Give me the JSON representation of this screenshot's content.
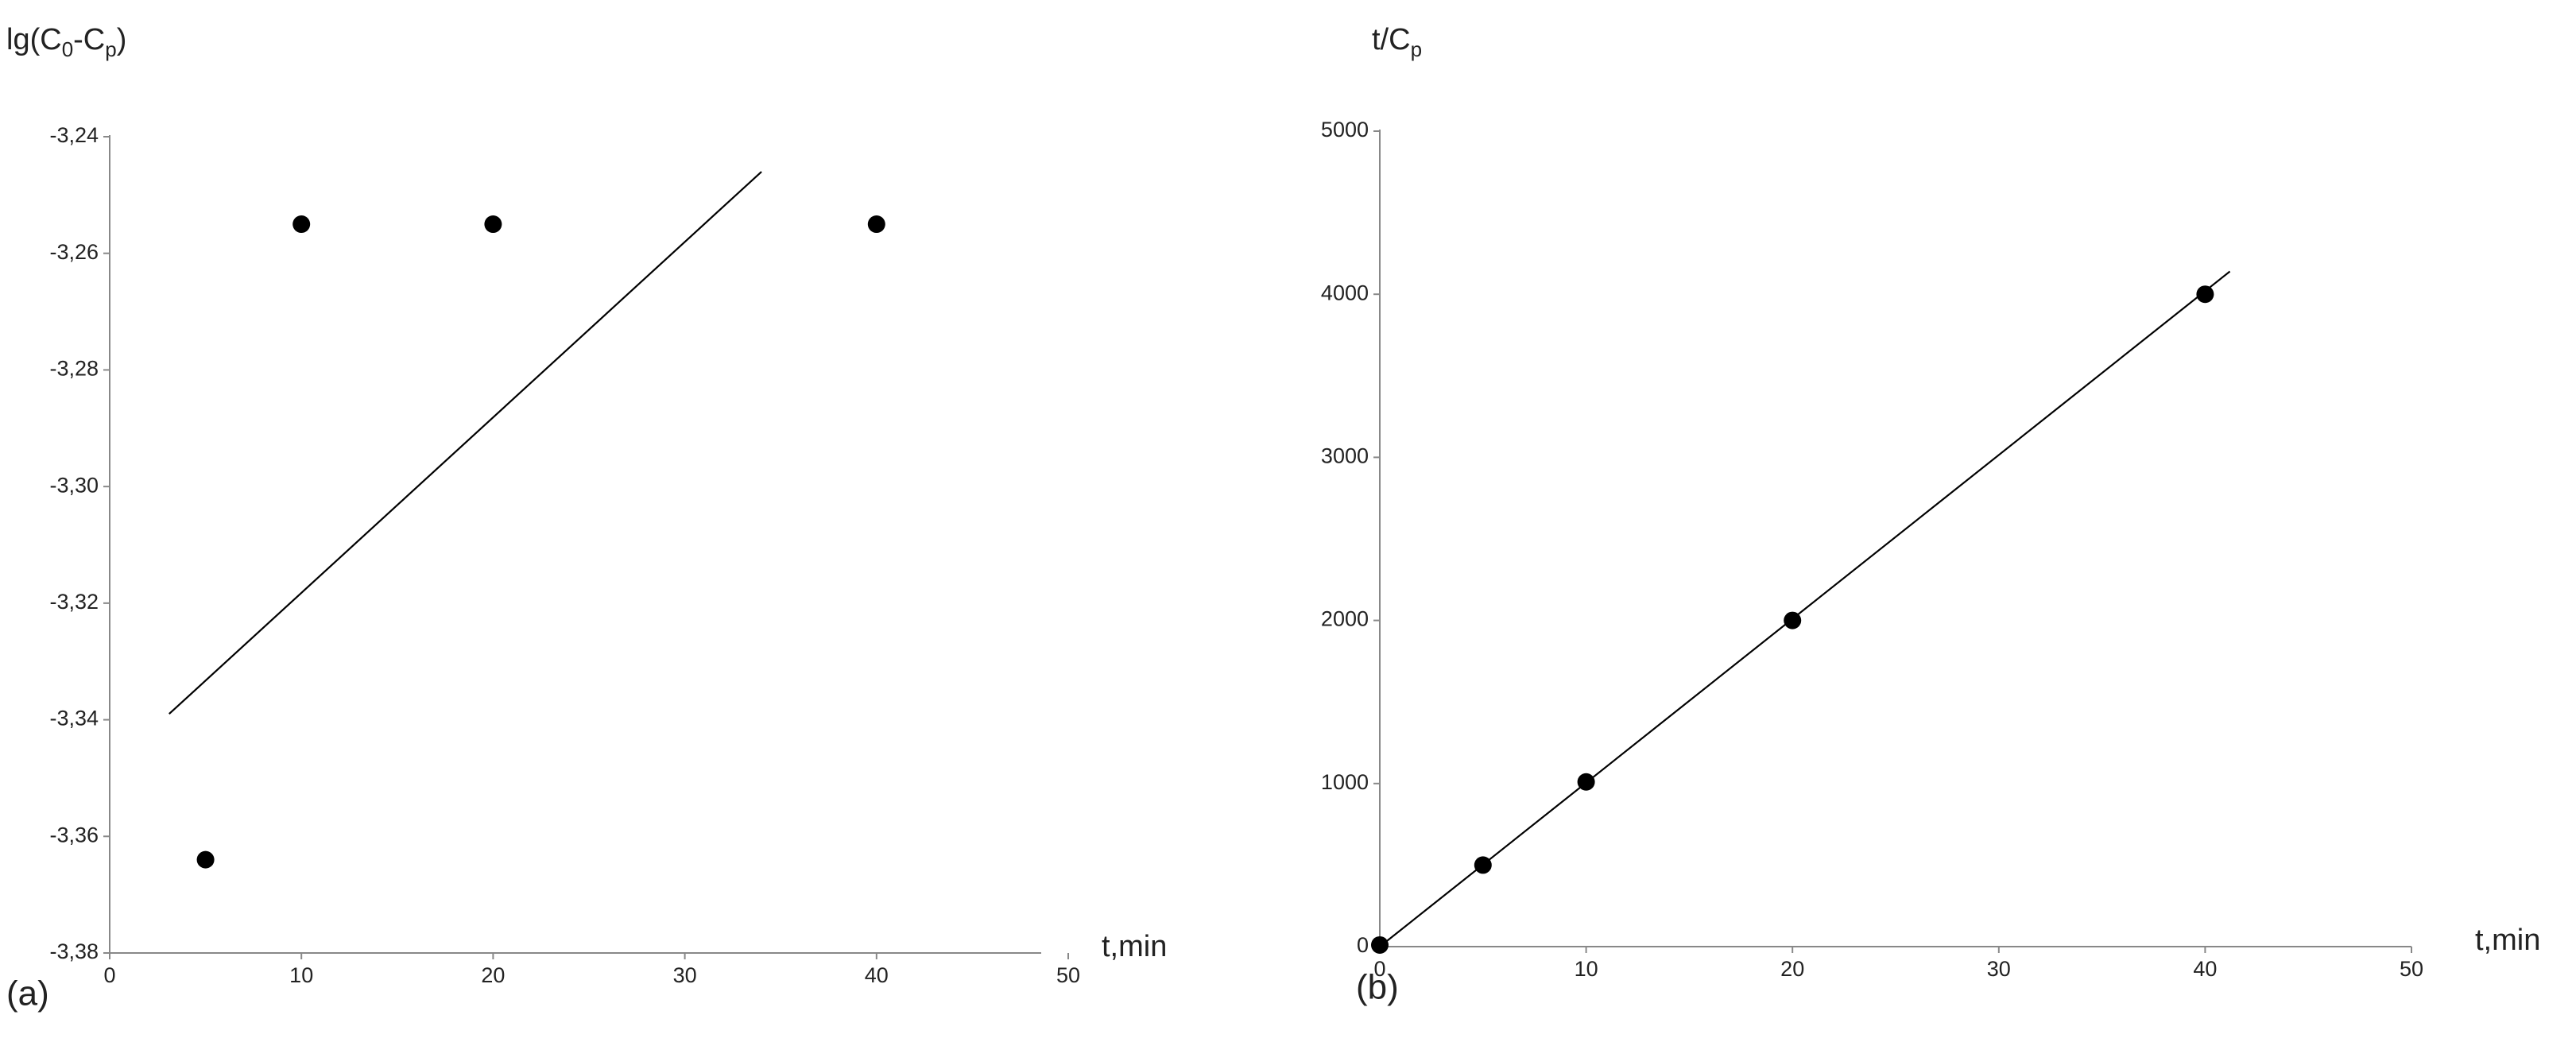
{
  "chart_data": [
    {
      "type": "scatter",
      "panel": "(a)",
      "ylabel": [
        "lg(C",
        "0",
        "-C",
        "p",
        ")"
      ],
      "xlabel": "t,min",
      "xlim": [
        0,
        50
      ],
      "xticks": [
        0,
        10,
        20,
        30,
        40,
        50
      ],
      "ylim": [
        -3.38,
        -3.24
      ],
      "yticks": [
        {
          "value": -3.38,
          "label": "-3,38"
        },
        {
          "value": -3.36,
          "label": "-3,36"
        },
        {
          "value": -3.34,
          "label": "-3,34"
        },
        {
          "value": -3.32,
          "label": "-3,32"
        },
        {
          "value": -3.3,
          "label": "-3,30"
        },
        {
          "value": -3.28,
          "label": "-3,28"
        },
        {
          "value": -3.26,
          "label": "-3,26"
        },
        {
          "value": -3.24,
          "label": "-3,24"
        }
      ],
      "series": [
        {
          "style": "markers",
          "color": "#000000",
          "x": [
            5,
            10,
            20,
            40
          ],
          "values": [
            -3.364,
            -3.255,
            -3.255,
            -3.255
          ]
        },
        {
          "style": "line",
          "color": "#000000",
          "x": [
            3.1,
            34.0
          ],
          "values": [
            -3.339,
            -3.246
          ]
        }
      ]
    },
    {
      "type": "scatter",
      "panel": "(b)",
      "ylabel": [
        "t/C",
        "p"
      ],
      "xlabel": "t,min",
      "xlim": [
        0,
        50
      ],
      "xticks": [
        0,
        10,
        20,
        30,
        40,
        50
      ],
      "ylim": [
        0,
        5000
      ],
      "yticks": [
        0,
        1000,
        2000,
        3000,
        4000,
        5000
      ],
      "series": [
        {
          "style": "markers",
          "color": "#000000",
          "x": [
            0,
            5,
            10,
            20,
            40
          ],
          "values": [
            10,
            500,
            1010,
            2000,
            4000
          ]
        },
        {
          "style": "line",
          "color": "#000000",
          "x": [
            0,
            41.2
          ],
          "values": [
            0,
            4140
          ]
        }
      ]
    }
  ]
}
